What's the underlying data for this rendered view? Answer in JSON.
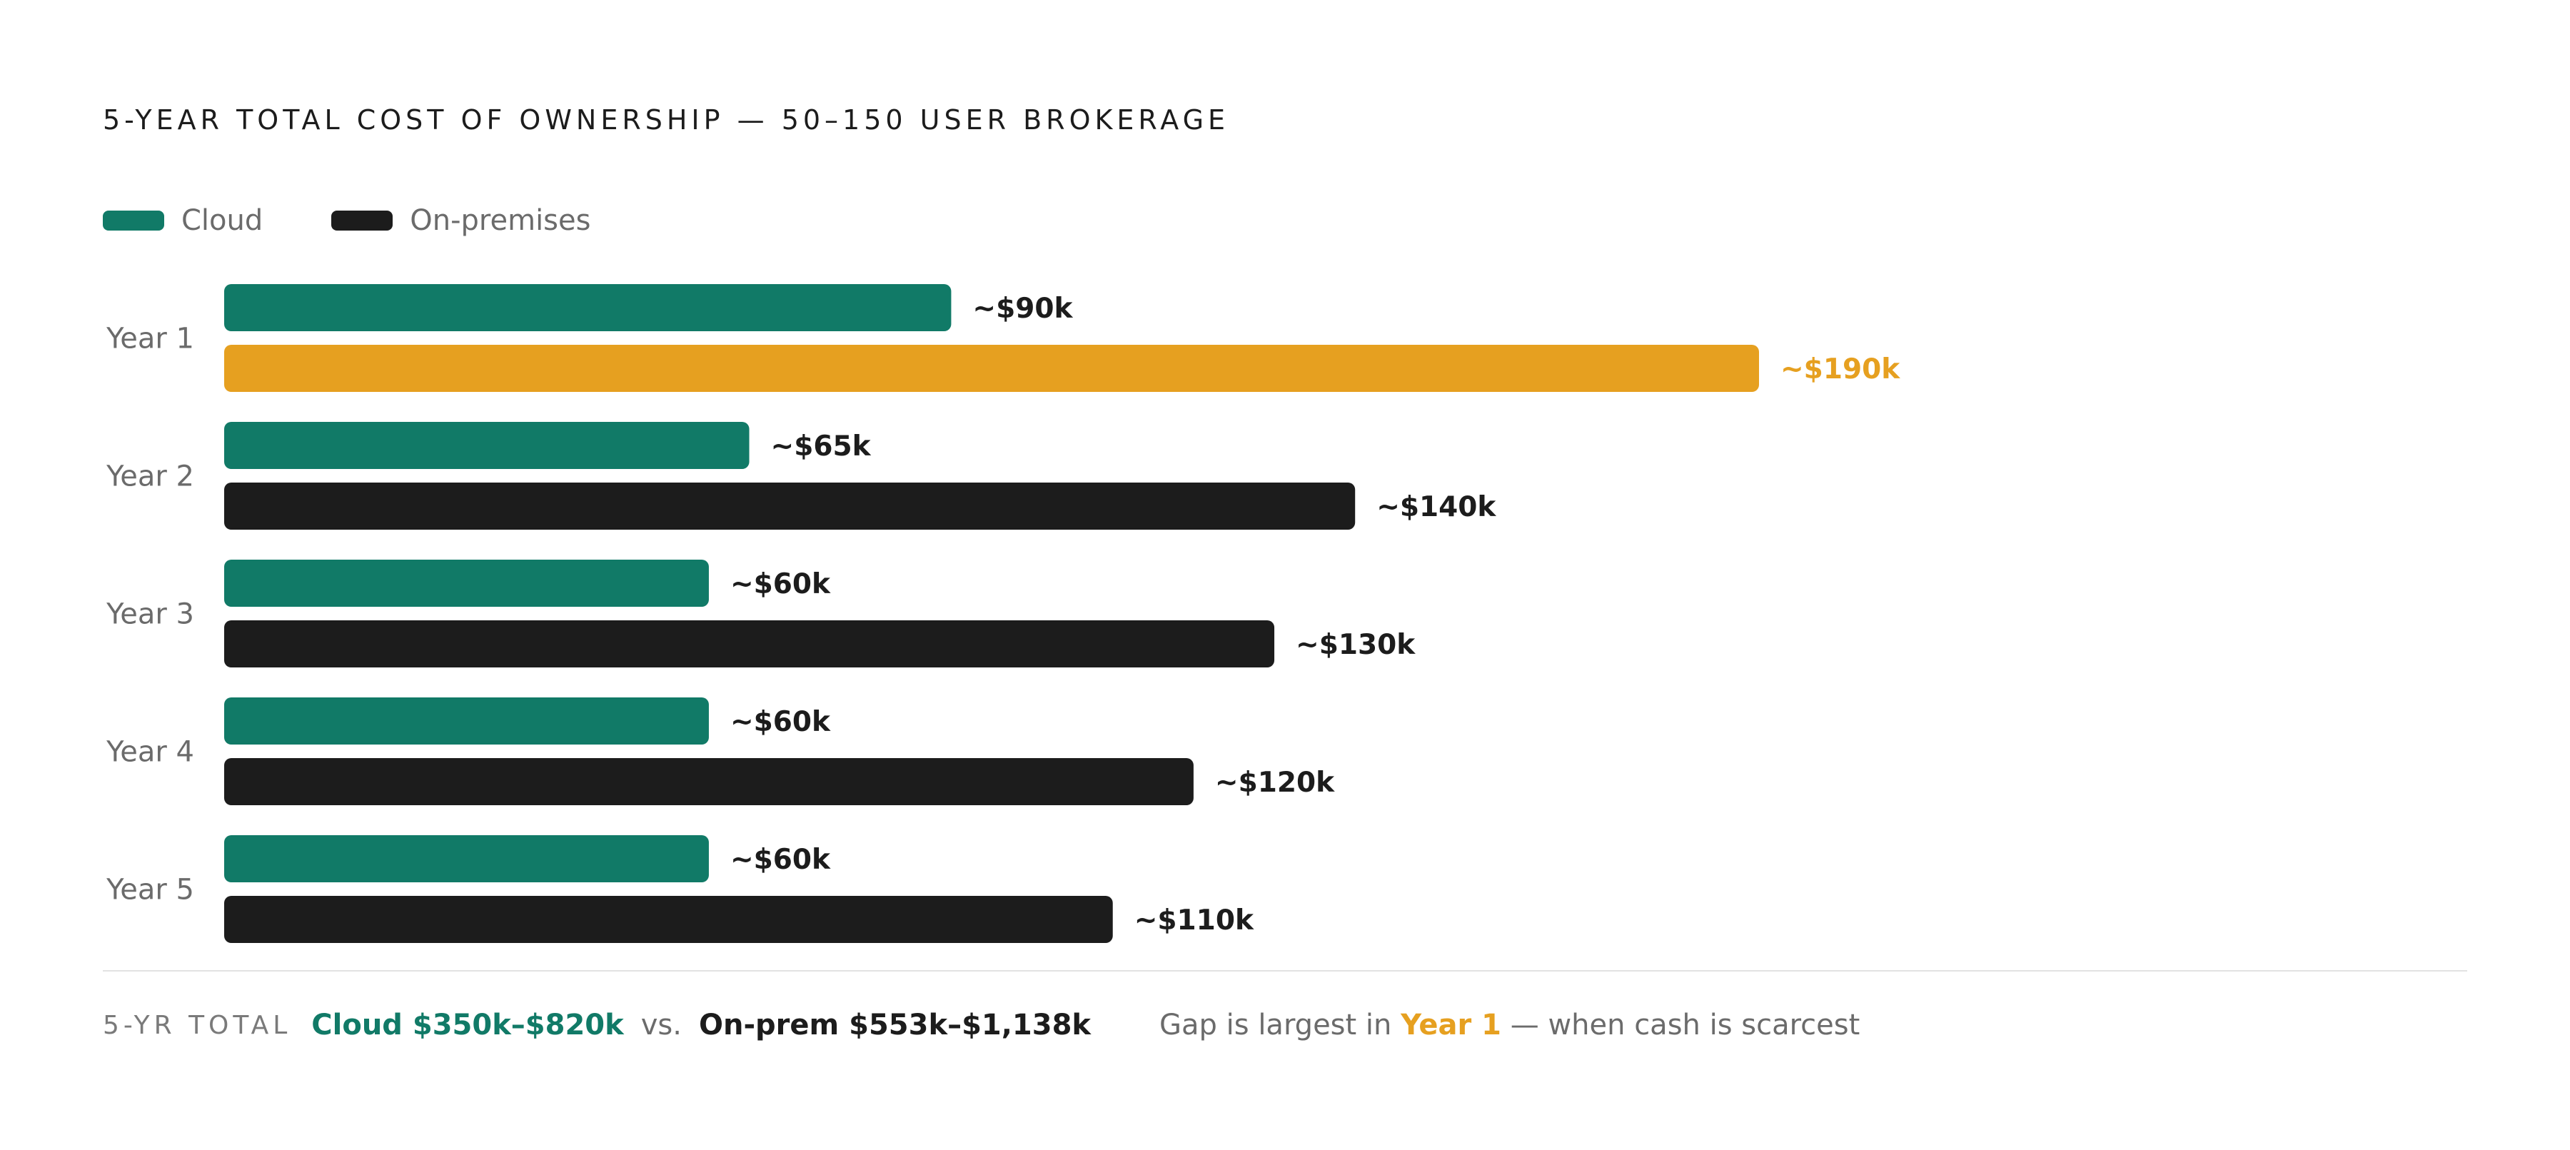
{
  "title": "5-YEAR TOTAL COST OF OWNERSHIP — 50–150 USER BROKERAGE",
  "legend": [
    {
      "label": "Cloud",
      "color": "#117a67"
    },
    {
      "label": "On-premises",
      "color": "#1c1c1c"
    }
  ],
  "chart_data": {
    "type": "bar",
    "orientation": "horizontal",
    "title": "5-YEAR TOTAL COST OF OWNERSHIP — 50–150 USER BROKERAGE",
    "categories": [
      "Year 1",
      "Year 2",
      "Year 3",
      "Year 4",
      "Year 5"
    ],
    "series": [
      {
        "name": "Cloud",
        "color": "#117a67",
        "values": [
          90,
          65,
          60,
          60,
          60
        ],
        "labels": [
          "~$90k",
          "~$65k",
          "~$60k",
          "~$60k",
          "~$60k"
        ]
      },
      {
        "name": "On-premises",
        "color": "#1c1c1c",
        "values": [
          190,
          140,
          130,
          120,
          110
        ],
        "labels": [
          "~$190k",
          "~$140k",
          "~$130k",
          "~$120k",
          "~$110k"
        ],
        "highlight": {
          "index": 0,
          "color": "#e6a020"
        }
      }
    ],
    "unit": "$k",
    "grid": false,
    "legend_position": "top-left"
  },
  "footer": {
    "label": "5-YR TOTAL",
    "cloud": "Cloud $350k–$820k",
    "vs": "vs.",
    "onprem": "On-prem $553k–$1,138k",
    "note_prefix": "Gap is largest in",
    "note_highlight": "Year 1",
    "note_suffix": "— when cash is scarcest"
  }
}
